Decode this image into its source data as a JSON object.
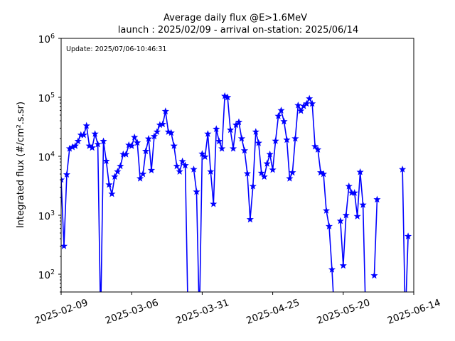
{
  "chart_data": {
    "type": "line",
    "title": "Average daily flux @E>1.6MeV",
    "subtitle": "launch : 2025/02/09 - arrival on-station: 2025/06/14",
    "annotation": "Update: 2025/07/06-10:46:31",
    "xlabel": "",
    "ylabel": "Integrated flux (#/cm².s.sr)",
    "y_scale": "log",
    "ylim": [
      50,
      1000000
    ],
    "xlim": [
      "2025-02-09",
      "2025-06-14"
    ],
    "x_ticks": [
      "2025-02-09",
      "2025-03-06",
      "2025-03-31",
      "2025-04-25",
      "2025-05-20",
      "2025-06-14"
    ],
    "y_ticks": [
      {
        "value": 100,
        "base": "10",
        "exp": "2"
      },
      {
        "value": 1000,
        "base": "10",
        "exp": "3"
      },
      {
        "value": 10000,
        "base": "10",
        "exp": "4"
      },
      {
        "value": 100000,
        "base": "10",
        "exp": "5"
      },
      {
        "value": 1000000,
        "base": "10",
        "exp": "6"
      }
    ],
    "grid": false,
    "legend": "none",
    "color": "#0000ff",
    "marker": "star",
    "series": [
      {
        "x": [
          "2025-02-09",
          "2025-02-10",
          "2025-02-11",
          "2025-02-12",
          "2025-02-13",
          "2025-02-14",
          "2025-02-15",
          "2025-02-16",
          "2025-02-17",
          "2025-02-18",
          "2025-02-19",
          "2025-02-20",
          "2025-02-21",
          "2025-02-22",
          "2025-02-23",
          "2025-02-24",
          "2025-02-25",
          "2025-02-26",
          "2025-02-27",
          "2025-02-28",
          "2025-03-01",
          "2025-03-02",
          "2025-03-03",
          "2025-03-04",
          "2025-03-05",
          "2025-03-06",
          "2025-03-07",
          "2025-03-08",
          "2025-03-09",
          "2025-03-10",
          "2025-03-11",
          "2025-03-12",
          "2025-03-13",
          "2025-03-14",
          "2025-03-15",
          "2025-03-16",
          "2025-03-17",
          "2025-03-18",
          "2025-03-19",
          "2025-03-20",
          "2025-03-21",
          "2025-03-22",
          "2025-03-23",
          "2025-03-24",
          "2025-03-25",
          "2025-03-26",
          "2025-03-27",
          "2025-03-28",
          "2025-03-29",
          "2025-03-30",
          "2025-03-31",
          "2025-04-01",
          "2025-04-02",
          "2025-04-03",
          "2025-04-04",
          "2025-04-05",
          "2025-04-06",
          "2025-04-07",
          "2025-04-08",
          "2025-04-09",
          "2025-04-10",
          "2025-04-11",
          "2025-04-12",
          "2025-04-13",
          "2025-04-14",
          "2025-04-15",
          "2025-04-16",
          "2025-04-17",
          "2025-04-18",
          "2025-04-19",
          "2025-04-20",
          "2025-04-21",
          "2025-04-22",
          "2025-04-23",
          "2025-04-24",
          "2025-04-25",
          "2025-04-26",
          "2025-04-27",
          "2025-04-28",
          "2025-04-29",
          "2025-04-30",
          "2025-05-01",
          "2025-05-02",
          "2025-05-03",
          "2025-05-04",
          "2025-05-05",
          "2025-05-06",
          "2025-05-07",
          "2025-05-08",
          "2025-05-09",
          "2025-05-10",
          "2025-05-11",
          "2025-05-12",
          "2025-05-13",
          "2025-05-14",
          "2025-05-15",
          "2025-05-16",
          "2025-05-17",
          "2025-05-18",
          "2025-05-19",
          "2025-05-20",
          "2025-05-21",
          "2025-05-22",
          "2025-05-23",
          "2025-05-24",
          "2025-05-25",
          "2025-05-26",
          "2025-05-27",
          "2025-05-28",
          "2025-05-29",
          "2025-05-30",
          "2025-05-31",
          "2025-06-01",
          "2025-06-02",
          "2025-06-03",
          "2025-06-04",
          "2025-06-05",
          "2025-06-06",
          "2025-06-07",
          "2025-06-08",
          "2025-06-09",
          "2025-06-10",
          "2025-06-11",
          "2025-06-12",
          "2025-06-13",
          "2025-06-14"
        ],
        "y": [
          4000,
          300,
          4900,
          13500,
          14300,
          15000,
          18000,
          23000,
          23000,
          33000,
          15000,
          14000,
          24000,
          16000,
          0,
          18000,
          8300,
          3300,
          2300,
          4500,
          5500,
          6800,
          10800,
          10800,
          15500,
          15000,
          21000,
          17000,
          4200,
          5000,
          12200,
          19800,
          5800,
          21800,
          26000,
          34000,
          35000,
          58000,
          26000,
          25000,
          15000,
          6800,
          5500,
          8200,
          7000,
          0,
          null,
          6000,
          2500,
          0,
          11000,
          9800,
          24000,
          5500,
          1550,
          29000,
          18000,
          13500,
          105000,
          100000,
          28000,
          13500,
          34000,
          38000,
          20000,
          12500,
          5100,
          850,
          3100,
          26000,
          16800,
          5200,
          4500,
          7500,
          10800,
          5900,
          18200,
          48000,
          60000,
          39000,
          19000,
          4200,
          5300,
          20000,
          73000,
          59000,
          71000,
          78000,
          95000,
          78000,
          14700,
          13000,
          5300,
          5000,
          1200,
          650,
          120,
          0,
          null,
          800,
          140,
          1000,
          3100,
          2400,
          2400,
          960,
          5400,
          1500,
          0,
          null,
          null,
          95,
          1850,
          null,
          null,
          null,
          null,
          null,
          null,
          null,
          null,
          6000,
          0,
          440,
          null,
          null
        ]
      }
    ]
  }
}
